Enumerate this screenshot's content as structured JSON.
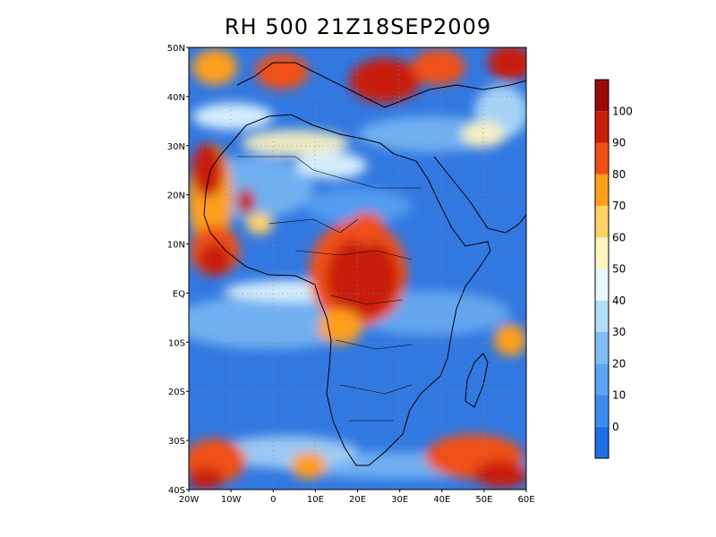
{
  "title": "RH 500 21Z18SEP2009",
  "map": {
    "lat_labels": [
      "50N",
      "40N",
      "30N",
      "20N",
      "10N",
      "EQ",
      "10S",
      "20S",
      "30S",
      "40S"
    ],
    "lon_labels": [
      "20W",
      "10W",
      "0",
      "10E",
      "20E",
      "30E",
      "40E",
      "50E",
      "60E"
    ],
    "lon_range": [
      -20,
      60
    ],
    "lat_range": [
      -40,
      50
    ],
    "grid_lines": "dotted"
  },
  "colorbar": {
    "labels": [
      "0",
      "10",
      "20",
      "30",
      "40",
      "50",
      "60",
      "70",
      "80",
      "90",
      "100"
    ],
    "colors": [
      "#1e6ee6",
      "#3c8cf0",
      "#5aa5f5",
      "#7fbef5",
      "#b4dcf8",
      "#e6faff",
      "#fff5c0",
      "#ffd266",
      "#ff9f1e",
      "#f05014",
      "#c81e0a",
      "#9b0a0a"
    ]
  }
}
